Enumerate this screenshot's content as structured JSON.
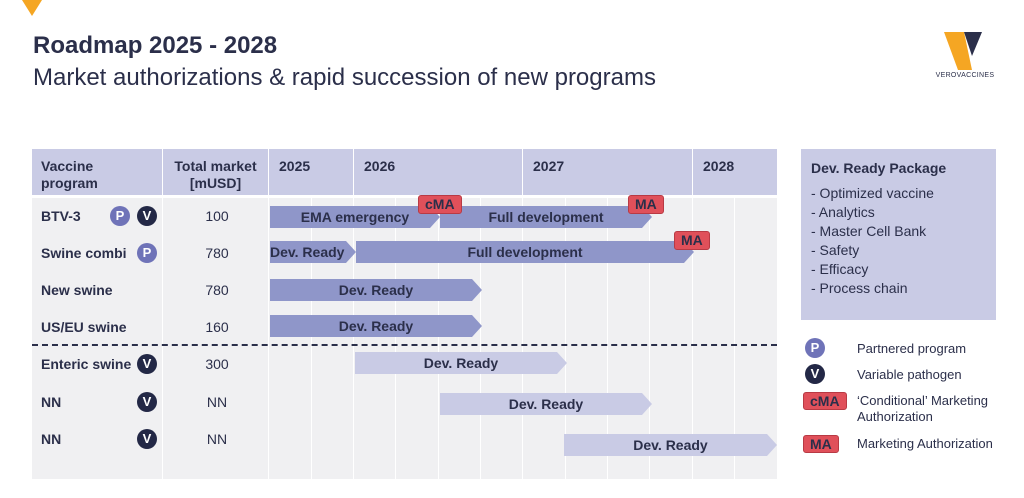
{
  "title": "Roadmap 2025 - 2028",
  "subtitle": "Market authorizations & rapid succession of new programs",
  "logo": {
    "text": "VEROVACCINES",
    "colors": [
      "#f5a623",
      "#2b2f4a"
    ]
  },
  "table": {
    "headers": {
      "program_line1": "Vaccine",
      "program_line2": "program",
      "market_line1": "Total market",
      "market_line2": "[mUSD]"
    },
    "years": [
      "2025",
      "2026",
      "2027",
      "2028"
    ],
    "rows": [
      {
        "name": "BTV-3",
        "badges": [
          "P",
          "V"
        ],
        "market": "100"
      },
      {
        "name": "Swine combi",
        "badges": [
          "P"
        ],
        "market": "780"
      },
      {
        "name": "New swine",
        "badges": [],
        "market": "780"
      },
      {
        "name": "US/EU swine",
        "badges": [],
        "market": "160"
      },
      {
        "name": "Enteric swine",
        "badges": [
          "V"
        ],
        "market": "300"
      },
      {
        "name": "NN",
        "badges": [
          "V"
        ],
        "market": "NN"
      },
      {
        "name": "NN",
        "badges": [
          "V"
        ],
        "market": "NN"
      }
    ],
    "bars": [
      {
        "label": "EMA emergency",
        "style": "dark"
      },
      {
        "label": "Full development",
        "style": "dark"
      },
      {
        "label": "Dev. Ready",
        "style": "dark"
      },
      {
        "label": "Full development",
        "style": "dark"
      },
      {
        "label": "Dev. Ready",
        "style": "dark"
      },
      {
        "label": "Dev. Ready",
        "style": "dark"
      },
      {
        "label": "Dev. Ready",
        "style": "light"
      },
      {
        "label": "Dev. Ready",
        "style": "light"
      },
      {
        "label": "Dev. Ready",
        "style": "light"
      }
    ],
    "tags": [
      "cMA",
      "MA",
      "MA"
    ]
  },
  "package": {
    "title": "Dev. Ready Package",
    "items": [
      "- Optimized vaccine",
      "- Analytics",
      "- Master Cell Bank",
      "- Safety",
      "- Efficacy",
      "- Process chain"
    ]
  },
  "legend": {
    "partnered": {
      "symbol": "P",
      "label": "Partnered program"
    },
    "variable": {
      "symbol": "V",
      "label": "Variable pathogen"
    },
    "cma": {
      "symbol": "cMA",
      "label": "‘Conditional’ Marketing Authorization"
    },
    "ma": {
      "symbol": "MA",
      "label": "Marketing Authorization"
    }
  }
}
